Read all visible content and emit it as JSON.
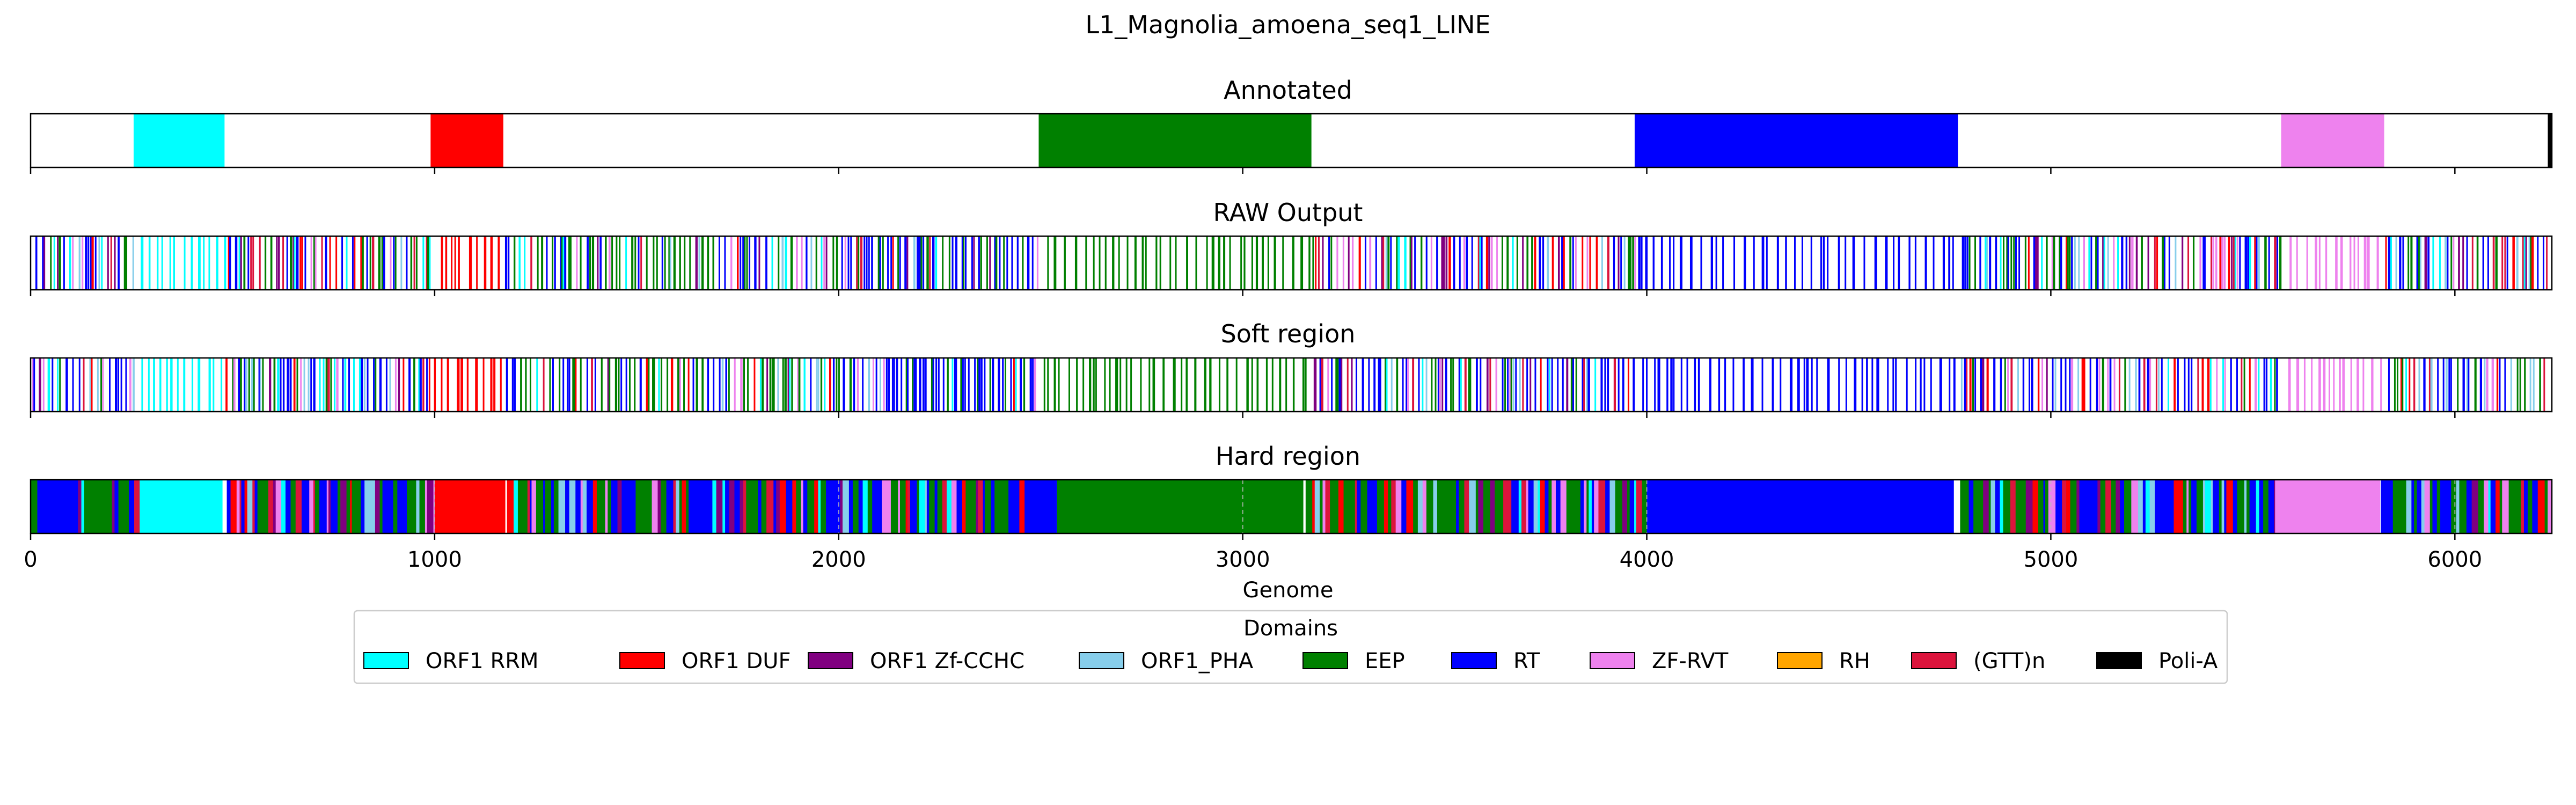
{
  "chart_data": {
    "type": "genome-track",
    "title": "L1_Magnolia_amoena_seq1_LINE",
    "xlabel": "Genome",
    "xlim": [
      0,
      6240
    ],
    "xticks": [
      0,
      1000,
      2000,
      3000,
      4000,
      5000,
      6000
    ],
    "xtick_labels": [
      "0",
      "1000",
      "2000",
      "3000",
      "4000",
      "5000",
      "6000"
    ],
    "legend": {
      "title": "Domains",
      "placement": "bottom-center",
      "entries": [
        {
          "label": "ORF1 RRM",
          "color": "#00ffff"
        },
        {
          "label": "ORF1 DUF",
          "color": "#ff0000"
        },
        {
          "label": "ORF1 Zf-CCHC",
          "color": "#800080"
        },
        {
          "label": "ORF1_PHA",
          "color": "#87ceeb"
        },
        {
          "label": "EEP",
          "color": "#008000"
        },
        {
          "label": "RT",
          "color": "#0000ff"
        },
        {
          "label": "ZF-RVT",
          "color": "#ee82ee"
        },
        {
          "label": "RH",
          "color": "#ffa500"
        },
        {
          "label": "(GTT)n",
          "color": "#dc143c"
        },
        {
          "label": "Poli-A",
          "color": "#000000"
        }
      ]
    },
    "annotated_segments": [
      {
        "domain": "ORF1 RRM",
        "start": 255,
        "end": 480
      },
      {
        "domain": "ORF1 DUF",
        "start": 990,
        "end": 1170
      },
      {
        "domain": "EEP",
        "start": 2495,
        "end": 3170
      },
      {
        "domain": "RT",
        "start": 3970,
        "end": 4770
      },
      {
        "domain": "ZF-RVT",
        "start": 5570,
        "end": 5825
      },
      {
        "domain": "Poli-A",
        "start": 6230,
        "end": 6240
      }
    ],
    "panels": [
      {
        "title": "Annotated",
        "kind": "annotated"
      },
      {
        "title": "RAW Output",
        "kind": "raw"
      },
      {
        "title": "Soft region",
        "kind": "soft"
      },
      {
        "title": "Hard region",
        "kind": "hard"
      }
    ]
  }
}
